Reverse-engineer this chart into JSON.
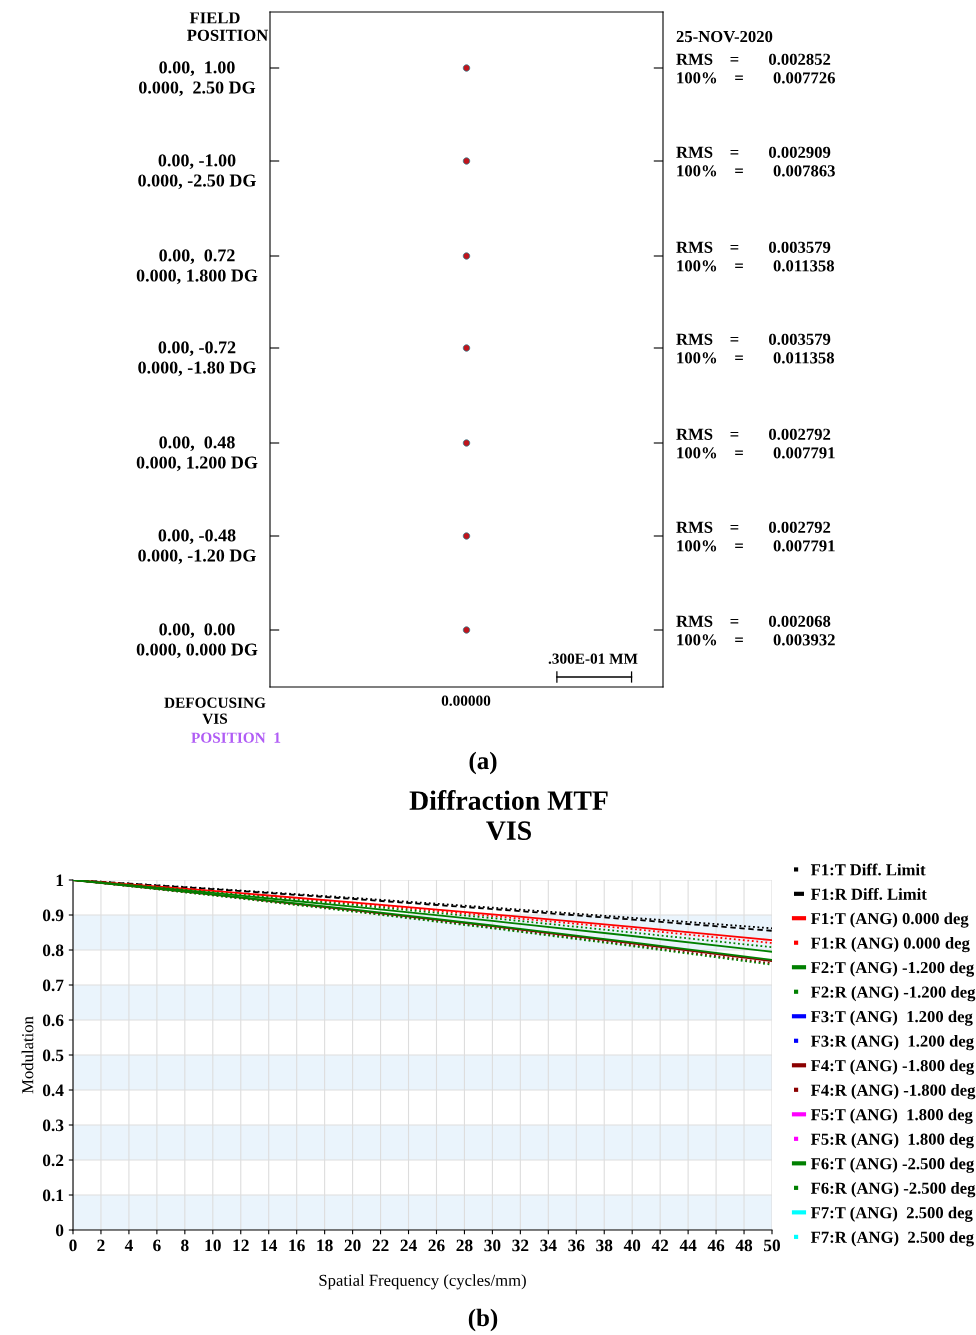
{
  "chart_data": [
    {
      "type": "other",
      "annotations": [
        "FIELD\n      POSITION",
        "0.00,  1.00\n0.000,  2.50 DG",
        "0.00, -1.00\n0.000, -2.50 DG",
        "0.00,  0.72\n0.000, 1.800 DG",
        "0.00, -0.72\n0.000, -1.80 DG",
        "0.00,  0.48\n0.000, 1.200 DG",
        "0.00, -0.48\n0.000, -1.20 DG",
        "0.00,  0.00\n0.000, 0.000 DG",
        "25-NOV-2020",
        "RMS    =       0.002852\n100%    =       0.007726",
        "RMS    =       0.002909\n100%    =       0.007863",
        "RMS    =       0.003579\n100%    =       0.011358",
        "RMS    =       0.003579\n100%    =       0.011358",
        "RMS    =       0.002792\n100%    =       0.007791",
        "RMS    =       0.002792\n100%    =       0.007791",
        "RMS    =       0.002068\n100%    =       0.003932",
        ".300E-01 MM",
        "0.00000",
        "DEFOCUSING\nVIS",
        "POSITION  1",
        "(a)"
      ]
    },
    {
      "type": "line",
      "title": "Diffraction MTF\nVIS",
      "xlabel": "Spatial Frequency (cycles/mm)",
      "ylabel": "Modulation",
      "annotations": [
        "(b)"
      ],
      "x": [
        0,
        10,
        20,
        30,
        40,
        50
      ],
      "xlim": [
        0,
        50
      ],
      "xticks": [
        0,
        2,
        4,
        6,
        8,
        10,
        12,
        14,
        16,
        18,
        20,
        22,
        24,
        26,
        28,
        30,
        32,
        34,
        36,
        38,
        40,
        42,
        44,
        46,
        48,
        50
      ],
      "ylim": [
        0,
        1
      ],
      "yticks": [
        0,
        0.1,
        0.2,
        0.3,
        0.4,
        0.5,
        0.6,
        0.7,
        0.8,
        0.9,
        1
      ],
      "grid": true,
      "legend": "right",
      "marker": "none",
      "bands": [
        {
          "axis": "y",
          "from": 0,
          "to": 0.1,
          "color": "#eaf4fc"
        },
        {
          "axis": "y",
          "from": 0.2,
          "to": 0.3,
          "color": "#eaf4fc"
        },
        {
          "axis": "y",
          "from": 0.4,
          "to": 0.5,
          "color": "#eaf4fc"
        },
        {
          "axis": "y",
          "from": 0.6,
          "to": 0.7,
          "color": "#eaf4fc"
        },
        {
          "axis": "y",
          "from": 0.8,
          "to": 0.9,
          "color": "#eaf4fc"
        }
      ],
      "series": [
        {
          "name": "F1:T Diff. Limit",
          "color": "#000000",
          "line_style": "dotted",
          "values": [
            1,
            0.975,
            0.949,
            0.921,
            0.892,
            0.862
          ]
        },
        {
          "name": "F1:R Diff. Limit",
          "color": "#000000",
          "line_style": "dashed",
          "values": [
            1,
            0.974,
            0.946,
            0.917,
            0.887,
            0.855
          ]
        },
        {
          "name": "F1:T (ANG) 0.000 deg",
          "color": "#ff0000",
          "line_style": "solid",
          "values": [
            1,
            0.969,
            0.936,
            0.902,
            0.866,
            0.828
          ]
        },
        {
          "name": "F1:R (ANG) 0.000 deg",
          "color": "#ff0000",
          "line_style": "dotted",
          "values": [
            1,
            0.968,
            0.933,
            0.897,
            0.86,
            0.82
          ]
        },
        {
          "name": "F2:T (ANG) -1.200 deg",
          "color": "#008000",
          "line_style": "solid",
          "values": [
            1,
            0.963,
            0.924,
            0.883,
            0.84,
            0.795
          ]
        },
        {
          "name": "F2:R (ANG) -1.200 deg",
          "color": "#008000",
          "line_style": "dotted",
          "values": [
            1,
            0.965,
            0.929,
            0.891,
            0.85,
            0.808
          ]
        },
        {
          "name": "F3:T (ANG)  1.200 deg",
          "color": "#0000ff",
          "line_style": "solid",
          "values": [
            null,
            null,
            null,
            null,
            null,
            null
          ]
        },
        {
          "name": "F3:R (ANG)  1.200 deg",
          "color": "#0000ff",
          "line_style": "dotted",
          "values": [
            null,
            null,
            null,
            null,
            null,
            null
          ]
        },
        {
          "name": "F4:T (ANG) -1.800 deg",
          "color": "#8b0000",
          "line_style": "solid",
          "values": [
            1,
            0.958,
            0.914,
            0.868,
            0.819,
            0.768
          ]
        },
        {
          "name": "F4:R (ANG) -1.800 deg",
          "color": "#8b0000",
          "line_style": "dotted",
          "values": [
            1,
            0.957,
            0.912,
            0.864,
            0.814,
            0.762
          ]
        },
        {
          "name": "F5:T (ANG)  1.800 deg",
          "color": "#ff00ff",
          "line_style": "solid",
          "values": [
            null,
            null,
            null,
            null,
            null,
            null
          ]
        },
        {
          "name": "F5:R (ANG)  1.800 deg",
          "color": "#ff00ff",
          "line_style": "dotted",
          "values": [
            null,
            null,
            null,
            null,
            null,
            null
          ]
        },
        {
          "name": "F6:T (ANG) -2.500 deg",
          "color": "#008000",
          "line_style": "solid",
          "values": [
            1,
            0.959,
            0.916,
            0.87,
            0.822,
            0.772
          ]
        },
        {
          "name": "F6:R (ANG) -2.500 deg",
          "color": "#008000",
          "line_style": "dotted",
          "values": [
            1,
            0.956,
            0.91,
            0.862,
            0.811,
            0.758
          ]
        },
        {
          "name": "F7:T (ANG)  2.500 deg",
          "color": "#00ffff",
          "line_style": "solid",
          "values": [
            null,
            null,
            null,
            null,
            null,
            null
          ]
        },
        {
          "name": "F7:R (ANG)  2.500 deg",
          "color": "#00ffff",
          "line_style": "dotted",
          "values": [
            null,
            null,
            null,
            null,
            null,
            null
          ]
        }
      ]
    }
  ]
}
